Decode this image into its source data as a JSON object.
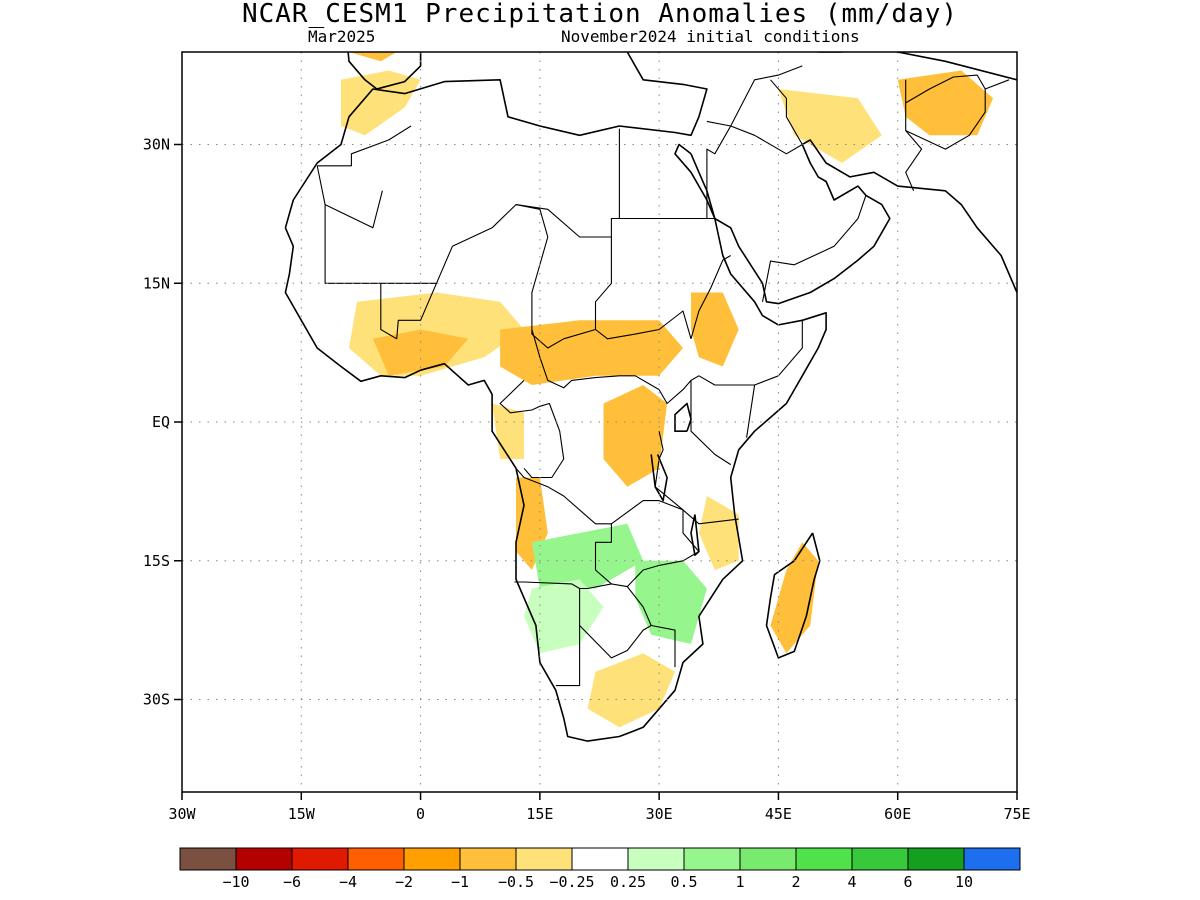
{
  "title": "NCAR_CESM1 Precipitation Anomalies (mm/day)",
  "subtitle_left": "Mar2025",
  "subtitle_right": "November2024 initial conditions",
  "map": {
    "lon_range": [
      -30,
      75
    ],
    "lat_range": [
      -40,
      40
    ],
    "lat_ticks": [
      {
        "value": 30,
        "label": "30N"
      },
      {
        "value": 15,
        "label": "15N"
      },
      {
        "value": 0,
        "label": "EQ"
      },
      {
        "value": -15,
        "label": "15S"
      },
      {
        "value": -30,
        "label": "30S"
      }
    ],
    "lon_ticks": [
      {
        "value": -30,
        "label": "30W"
      },
      {
        "value": -15,
        "label": "15W"
      },
      {
        "value": 0,
        "label": "0"
      },
      {
        "value": 15,
        "label": "15E"
      },
      {
        "value": 30,
        "label": "30E"
      },
      {
        "value": 45,
        "label": "45E"
      },
      {
        "value": 60,
        "label": "60E"
      },
      {
        "value": 75,
        "label": "75E"
      }
    ],
    "grid": true
  },
  "colorbar": {
    "colors": [
      "#7a5040",
      "#b50000",
      "#e01a00",
      "#ff5f00",
      "#ff9f00",
      "#ffbf3a",
      "#ffe17a",
      "#ffffff",
      "#c8ffbe",
      "#96f58c",
      "#78eb6e",
      "#50e14b",
      "#37c83c",
      "#14a01e",
      "#1e6ef0"
    ],
    "labels": [
      "−10",
      "−6",
      "−4",
      "−2",
      "−1",
      "−0.5",
      "−0.25",
      "0.25",
      "0.5",
      "1",
      "2",
      "4",
      "6",
      "10"
    ]
  },
  "anomaly_regions": [
    {
      "color": "#ffe17a",
      "region": "Morocco / NW Africa coast",
      "polygon": [
        [
          -10,
          37
        ],
        [
          -4,
          38
        ],
        [
          0,
          37
        ],
        [
          -2,
          34
        ],
        [
          -7,
          31
        ],
        [
          -10,
          32
        ]
      ]
    },
    {
      "color": "#ffbf3a",
      "region": "Iberia",
      "polygon": [
        [
          -9,
          43
        ],
        [
          -3,
          44
        ],
        [
          -1,
          41
        ],
        [
          -5,
          39
        ],
        [
          -9,
          40
        ]
      ]
    },
    {
      "color": "#ffe17a",
      "region": "Arabia / Iran west",
      "polygon": [
        [
          45,
          36
        ],
        [
          55,
          35
        ],
        [
          58,
          31
        ],
        [
          53,
          28
        ],
        [
          47,
          31
        ]
      ]
    },
    {
      "color": "#ffbf3a",
      "region": "Afghanistan / Pakistan",
      "polygon": [
        [
          60,
          37
        ],
        [
          68,
          38
        ],
        [
          72,
          35
        ],
        [
          70,
          31
        ],
        [
          64,
          31
        ],
        [
          61,
          33
        ]
      ]
    },
    {
      "color": "#ffe17a",
      "region": "West Africa Sahel belt",
      "polygon": [
        [
          -8,
          13
        ],
        [
          2,
          14
        ],
        [
          10,
          13
        ],
        [
          13,
          10
        ],
        [
          8,
          7
        ],
        [
          0,
          5
        ],
        [
          -5,
          5
        ],
        [
          -9,
          8
        ]
      ]
    },
    {
      "color": "#ffbf3a",
      "region": "Gulf of Guinea coast",
      "polygon": [
        [
          -6,
          9
        ],
        [
          0,
          10
        ],
        [
          6,
          9
        ],
        [
          3,
          6
        ],
        [
          -4,
          5
        ]
      ]
    },
    {
      "color": "#ffbf3a",
      "region": "Central Africa / Cameroon to South Sudan",
      "polygon": [
        [
          10,
          10
        ],
        [
          20,
          11
        ],
        [
          30,
          11
        ],
        [
          33,
          8
        ],
        [
          30,
          5
        ],
        [
          22,
          5
        ],
        [
          14,
          4
        ],
        [
          10,
          6
        ]
      ]
    },
    {
      "color": "#ffbf3a",
      "region": "Ethiopia highlands",
      "polygon": [
        [
          34,
          14
        ],
        [
          38,
          14
        ],
        [
          40,
          10
        ],
        [
          38,
          6
        ],
        [
          35,
          7
        ],
        [
          34,
          10
        ]
      ]
    },
    {
      "color": "#ffbf3a",
      "region": "DR Congo east",
      "polygon": [
        [
          23,
          2
        ],
        [
          28,
          4
        ],
        [
          31,
          2
        ],
        [
          30,
          -5
        ],
        [
          26,
          -7
        ],
        [
          23,
          -4
        ]
      ]
    },
    {
      "color": "#ffe17a",
      "region": "Gabon / Congo coast",
      "polygon": [
        [
          9,
          2
        ],
        [
          13,
          1
        ],
        [
          13,
          -4
        ],
        [
          10,
          -4
        ]
      ]
    },
    {
      "color": "#ffbf3a",
      "region": "Angola coast",
      "polygon": [
        [
          12,
          -6
        ],
        [
          15,
          -6
        ],
        [
          16,
          -12
        ],
        [
          14,
          -16
        ],
        [
          12,
          -14
        ]
      ]
    },
    {
      "color": "#ffe17a",
      "region": "Tanzania / Mozambique north",
      "polygon": [
        [
          36,
          -8
        ],
        [
          40,
          -10
        ],
        [
          40,
          -15
        ],
        [
          37,
          -16
        ],
        [
          35,
          -12
        ]
      ]
    },
    {
      "color": "#ffbf3a",
      "region": "Madagascar",
      "polygon": [
        [
          48,
          -13
        ],
        [
          50,
          -15
        ],
        [
          49,
          -22
        ],
        [
          46,
          -25
        ],
        [
          44,
          -22
        ],
        [
          46,
          -16
        ]
      ]
    },
    {
      "color": "#96f58c",
      "region": "Zambia / Angola south",
      "polygon": [
        [
          14,
          -13
        ],
        [
          20,
          -12
        ],
        [
          26,
          -11
        ],
        [
          28,
          -15
        ],
        [
          22,
          -18
        ],
        [
          15,
          -18
        ]
      ]
    },
    {
      "color": "#c8ffbe",
      "region": "Namibia / Botswana",
      "polygon": [
        [
          14,
          -18
        ],
        [
          20,
          -17
        ],
        [
          23,
          -20
        ],
        [
          20,
          -24
        ],
        [
          15,
          -25
        ],
        [
          13,
          -21
        ]
      ]
    },
    {
      "color": "#96f58c",
      "region": "Zimbabwe / Mozambique",
      "polygon": [
        [
          27,
          -15
        ],
        [
          33,
          -15
        ],
        [
          36,
          -18
        ],
        [
          34,
          -24
        ],
        [
          29,
          -23
        ],
        [
          27,
          -19
        ]
      ]
    },
    {
      "color": "#ffe17a",
      "region": "South Africa east",
      "polygon": [
        [
          22,
          -27
        ],
        [
          28,
          -25
        ],
        [
          32,
          -27
        ],
        [
          30,
          -31
        ],
        [
          25,
          -33
        ],
        [
          21,
          -31
        ]
      ]
    }
  ]
}
